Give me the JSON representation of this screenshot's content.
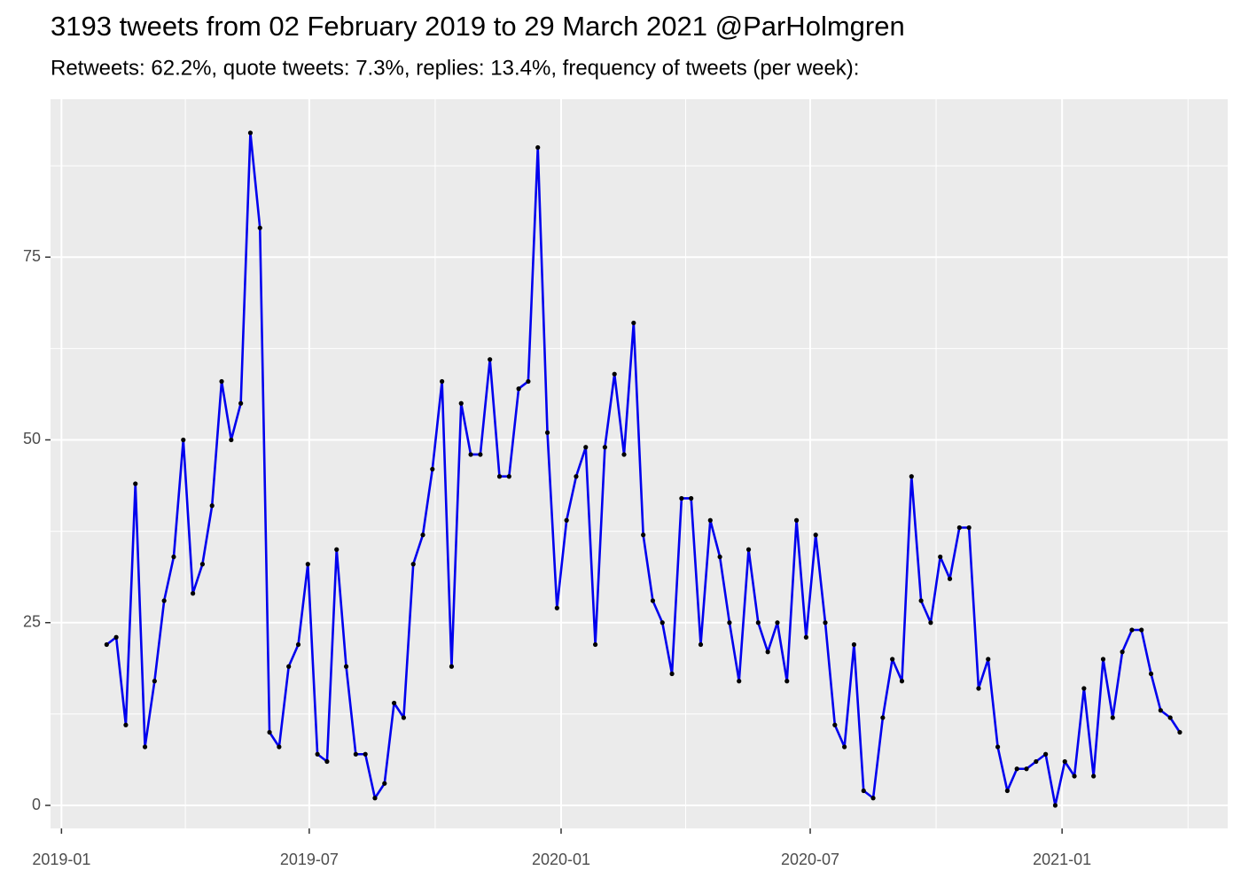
{
  "chart_data": {
    "type": "line",
    "title": "3193 tweets from 02 February 2019 to 29 March 2021 @ParHolmgren",
    "subtitle": "Retweets: 62.2%, quote tweets: 7.3%, replies: 13.4%, frequency of tweets (per week):",
    "x": [
      "2019-02-03",
      "2019-02-10",
      "2019-02-17",
      "2019-02-24",
      "2019-03-03",
      "2019-03-10",
      "2019-03-17",
      "2019-03-24",
      "2019-03-31",
      "2019-04-07",
      "2019-04-14",
      "2019-04-21",
      "2019-04-28",
      "2019-05-05",
      "2019-05-12",
      "2019-05-19",
      "2019-05-26",
      "2019-06-02",
      "2019-06-09",
      "2019-06-16",
      "2019-06-23",
      "2019-06-30",
      "2019-07-07",
      "2019-07-14",
      "2019-07-21",
      "2019-07-28",
      "2019-08-04",
      "2019-08-11",
      "2019-08-18",
      "2019-08-25",
      "2019-09-01",
      "2019-09-08",
      "2019-09-15",
      "2019-09-22",
      "2019-09-29",
      "2019-10-06",
      "2019-10-13",
      "2019-10-20",
      "2019-10-27",
      "2019-11-03",
      "2019-11-10",
      "2019-11-17",
      "2019-11-24",
      "2019-12-01",
      "2019-12-08",
      "2019-12-15",
      "2019-12-22",
      "2019-12-29",
      "2020-01-05",
      "2020-01-12",
      "2020-01-19",
      "2020-01-26",
      "2020-02-02",
      "2020-02-09",
      "2020-02-16",
      "2020-02-23",
      "2020-03-01",
      "2020-03-08",
      "2020-03-15",
      "2020-03-22",
      "2020-03-29",
      "2020-04-05",
      "2020-04-12",
      "2020-04-19",
      "2020-04-26",
      "2020-05-03",
      "2020-05-10",
      "2020-05-17",
      "2020-05-24",
      "2020-05-31",
      "2020-06-07",
      "2020-06-14",
      "2020-06-21",
      "2020-06-28",
      "2020-07-05",
      "2020-07-12",
      "2020-07-19",
      "2020-07-26",
      "2020-08-02",
      "2020-08-09",
      "2020-08-16",
      "2020-08-23",
      "2020-08-30",
      "2020-09-06",
      "2020-09-13",
      "2020-09-20",
      "2020-09-27",
      "2020-10-04",
      "2020-10-11",
      "2020-10-18",
      "2020-10-25",
      "2020-11-01",
      "2020-11-08",
      "2020-11-15",
      "2020-11-22",
      "2020-11-29",
      "2020-12-06",
      "2020-12-13",
      "2020-12-20",
      "2020-12-27",
      "2021-01-03",
      "2021-01-10",
      "2021-01-17",
      "2021-01-24",
      "2021-01-31",
      "2021-02-07",
      "2021-02-14",
      "2021-02-21",
      "2021-02-28",
      "2021-03-07",
      "2021-03-14",
      "2021-03-21",
      "2021-03-28"
    ],
    "series": [
      {
        "color": "#0000ee",
        "values": [
          22,
          23,
          11,
          44,
          8,
          17,
          28,
          34,
          50,
          29,
          33,
          41,
          58,
          50,
          55,
          92,
          79,
          10,
          8,
          19,
          22,
          33,
          7,
          6,
          35,
          19,
          7,
          7,
          1,
          3,
          14,
          12,
          33,
          37,
          46,
          58,
          19,
          55,
          48,
          48,
          61,
          45,
          45,
          57,
          58,
          90,
          51,
          27,
          39,
          45,
          49,
          22,
          49,
          59,
          48,
          66,
          37,
          28,
          25,
          18,
          42,
          42,
          22,
          39,
          34,
          25,
          17,
          35,
          25,
          21,
          25,
          17,
          39,
          23,
          37,
          25,
          11,
          8,
          22,
          2,
          1,
          12,
          20,
          17,
          45,
          28,
          25,
          34,
          31,
          38,
          38,
          16,
          20,
          8,
          2,
          5,
          5,
          6,
          7,
          0,
          6,
          4,
          16,
          4,
          20,
          12,
          21,
          24,
          24,
          18,
          13,
          12,
          10
        ]
      }
    ],
    "point_color": "#000000",
    "xlim": [
      "2018-12-24",
      "2021-05-02"
    ],
    "xticks": [
      {
        "value": "2019-01-01",
        "label": "2019-01"
      },
      {
        "value": "2019-07-01",
        "label": "2019-07"
      },
      {
        "value": "2020-01-01",
        "label": "2020-01"
      },
      {
        "value": "2020-07-01",
        "label": "2020-07"
      },
      {
        "value": "2021-01-01",
        "label": "2021-01"
      }
    ],
    "ylim": [
      -3.15,
      96.6
    ],
    "yticks": [
      0,
      25,
      50,
      75
    ],
    "grid": true
  }
}
